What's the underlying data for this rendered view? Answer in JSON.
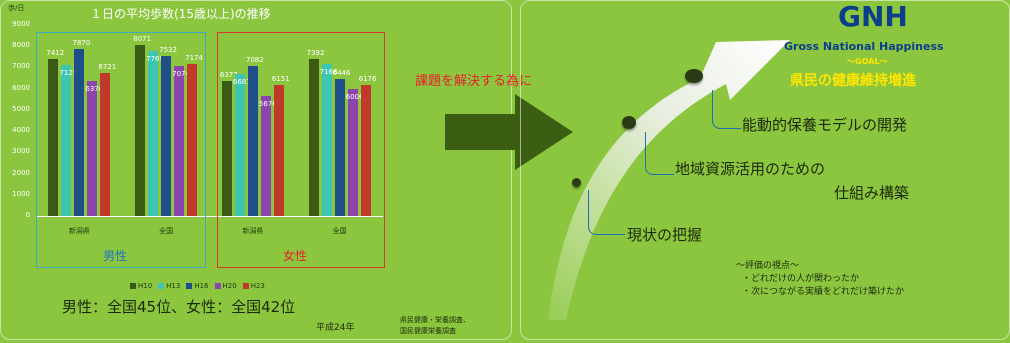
{
  "chart_data": {
    "type": "bar",
    "title": "１日の平均歩数(15歳以上)の推移",
    "ylabel": "歩/日",
    "ylim": [
      0,
      9000
    ],
    "yticks": [
      "0",
      "1000",
      "2000",
      "3000",
      "4000",
      "5000",
      "6000",
      "7000",
      "8000",
      "9000"
    ],
    "categories": [
      "新潟県",
      "全国",
      "新潟県",
      "全国"
    ],
    "groups": [
      "男性",
      "女性"
    ],
    "series": [
      {
        "name": "H10",
        "color": "#3a5a16",
        "values": [
          7412,
          8071,
          6377,
          7392
        ]
      },
      {
        "name": "H13",
        "color": "#3cc6b0",
        "values": [
          7125,
          7769,
          6687,
          7168
        ]
      },
      {
        "name": "H16",
        "color": "#1f4f88",
        "values": [
          7870,
          7532,
          7082,
          6446
        ]
      },
      {
        "name": "H20",
        "color": "#8e44ad",
        "values": [
          6370,
          7074,
          5676,
          6006
        ]
      },
      {
        "name": "H23",
        "color": "#c0392b",
        "values": [
          6721,
          7174,
          6151,
          6176
        ]
      }
    ]
  },
  "left": {
    "gender_male": "男性",
    "gender_female": "女性",
    "ranking": "男性：全国45位、女性：全国42位",
    "year_note": "平成24年",
    "source_line1": "県民健康・栄養調査、",
    "source_line2": "国民健康栄養調査"
  },
  "middle": {
    "arrow_text": "課題を解決する為に"
  },
  "right": {
    "gnh": "GNH",
    "gnh_full": "Gross National Happiness",
    "goal": "～GOAL～",
    "goal_text": "県民の健康維持増進",
    "step1": "能動的保養モデルの開発",
    "step2_line1": "地域資源活用のための",
    "step2_line2": "仕組み構築",
    "step3": "現状の把握",
    "eval_title": "～評価の視点～",
    "eval_item1": "・どれだけの人が関わったか",
    "eval_item2": "・次につながる実績をどれだけ築けたか"
  },
  "colors": {
    "background": "#8cc63f",
    "male_box": "#3fa9c9",
    "female_box": "#d63a2a",
    "goal_yellow": "#ffe600",
    "gnh_blue": "#0b3f8c",
    "arrow_dark": "#3b5e12",
    "red_text": "#e8202a"
  }
}
